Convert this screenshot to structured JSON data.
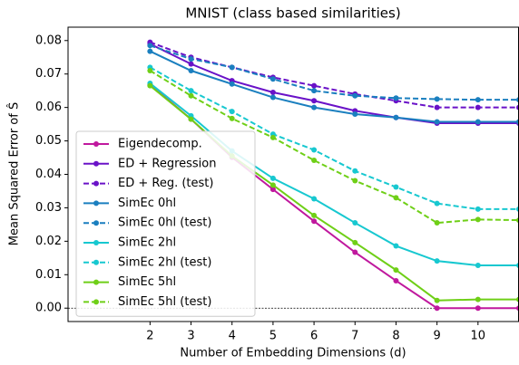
{
  "chart_data": {
    "type": "line",
    "title": "MNIST (class based similarities)",
    "xlabel": "Number of Embedding Dimensions (d)",
    "ylabel": "Mean Squared Error of Ŝ",
    "x": [
      2,
      3,
      4,
      5,
      6,
      7,
      8,
      9,
      10,
      11
    ],
    "xlim": [
      0,
      11
    ],
    "xticks": [
      2,
      3,
      4,
      5,
      6,
      7,
      8,
      9,
      10
    ],
    "ylim": [
      -0.004,
      0.084
    ],
    "yticks": [
      {
        "value": 0,
        "label": "0.00"
      },
      {
        "value": 0.01,
        "label": "0.01"
      },
      {
        "value": 0.02,
        "label": "0.02"
      },
      {
        "value": 0.03,
        "label": "0.03"
      },
      {
        "value": 0.04,
        "label": "0.04"
      },
      {
        "value": 0.05,
        "label": "0.05"
      },
      {
        "value": 0.06,
        "label": "0.06"
      },
      {
        "value": 0.07,
        "label": "0.07"
      },
      {
        "value": 0.08,
        "label": "0.08"
      }
    ],
    "hline": 0,
    "legend": "lower left",
    "series": [
      {
        "name": "Eigendecomp.",
        "color": "#c0189e",
        "linestyle": "solid",
        "values": [
          0.0668,
          0.0565,
          0.0451,
          0.0355,
          0.026,
          0.0167,
          0.0082,
          0,
          0,
          0
        ]
      },
      {
        "name": "ED + Regression",
        "color": "#6a12c8",
        "linestyle": "solid",
        "values": [
          0.079,
          0.073,
          0.068,
          0.0645,
          0.062,
          0.059,
          0.057,
          0.0553,
          0.0553,
          0.0553
        ]
      },
      {
        "name": "ED + Reg. (test)",
        "color": "#6a12c8",
        "linestyle": "dashed",
        "values": [
          0.0795,
          0.075,
          0.072,
          0.069,
          0.0665,
          0.064,
          0.062,
          0.06,
          0.06,
          0.06
        ]
      },
      {
        "name": "SimEc 0hl",
        "color": "#1a7fbf",
        "linestyle": "solid",
        "values": [
          0.0768,
          0.071,
          0.067,
          0.063,
          0.06,
          0.058,
          0.057,
          0.0557,
          0.0557,
          0.0557
        ]
      },
      {
        "name": "SimEc 0hl (test)",
        "color": "#1a7fbf",
        "linestyle": "dashed",
        "values": [
          0.0785,
          0.0745,
          0.072,
          0.0685,
          0.065,
          0.0635,
          0.0628,
          0.0625,
          0.0623,
          0.0623
        ]
      },
      {
        "name": "SimEc 2hl",
        "color": "#17c8d0",
        "linestyle": "solid",
        "values": [
          0.0672,
          0.0575,
          0.047,
          0.0388,
          0.0327,
          0.0255,
          0.0186,
          0.0141,
          0.0128,
          0.0128
        ]
      },
      {
        "name": "SimEc 2hl (test)",
        "color": "#17c8d0",
        "linestyle": "dashed",
        "values": [
          0.072,
          0.065,
          0.0588,
          0.052,
          0.0473,
          0.041,
          0.0362,
          0.0313,
          0.0296,
          0.0296
        ]
      },
      {
        "name": "SimEc 5hl",
        "color": "#6fcf17",
        "linestyle": "solid",
        "values": [
          0.0665,
          0.0565,
          0.0455,
          0.0368,
          0.0277,
          0.0196,
          0.0114,
          0.0023,
          0.0026,
          0.0026
        ]
      },
      {
        "name": "SimEc 5hl (test)",
        "color": "#6fcf17",
        "linestyle": "dashed",
        "values": [
          0.071,
          0.0635,
          0.0567,
          0.051,
          0.0442,
          0.0381,
          0.033,
          0.0255,
          0.0265,
          0.0263
        ]
      }
    ]
  }
}
